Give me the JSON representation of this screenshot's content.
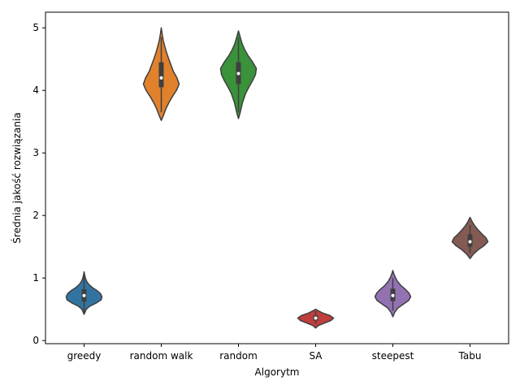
{
  "chart_data": {
    "type": "violin",
    "title": "",
    "xlabel": "Algorytm",
    "ylabel": "Średnia jakość rozwiązania",
    "ylim": [
      -0.05,
      5.25
    ],
    "yticks": [
      0,
      1,
      2,
      3,
      4,
      5
    ],
    "ytick_labels": [
      "0",
      "1",
      "2",
      "3",
      "4",
      "5"
    ],
    "grid": false,
    "categories": [
      "greedy",
      "random walk",
      "random",
      "SA",
      "steepest",
      "Tabu"
    ],
    "series": [
      {
        "category": "greedy",
        "color": "#3274a1",
        "whisker": [
          0.45,
          1.05
        ],
        "q1": 0.62,
        "median": 0.72,
        "q3": 0.82,
        "density": [
          [
            0.42,
            0.0
          ],
          [
            0.5,
            0.12
          ],
          [
            0.55,
            0.32
          ],
          [
            0.6,
            0.68
          ],
          [
            0.65,
            0.95
          ],
          [
            0.7,
            1.0
          ],
          [
            0.75,
            0.92
          ],
          [
            0.8,
            0.72
          ],
          [
            0.85,
            0.45
          ],
          [
            0.9,
            0.26
          ],
          [
            0.95,
            0.14
          ],
          [
            1.0,
            0.07
          ],
          [
            1.05,
            0.03
          ],
          [
            1.1,
            0.0
          ]
        ]
      },
      {
        "category": "random walk",
        "color": "#e1812c",
        "whisker": [
          3.65,
          4.85
        ],
        "q1": 4.05,
        "median": 4.2,
        "q3": 4.45,
        "density": [
          [
            3.52,
            0.0
          ],
          [
            3.6,
            0.12
          ],
          [
            3.7,
            0.25
          ],
          [
            3.8,
            0.42
          ],
          [
            3.9,
            0.62
          ],
          [
            4.0,
            0.85
          ],
          [
            4.1,
            1.0
          ],
          [
            4.2,
            0.88
          ],
          [
            4.3,
            0.68
          ],
          [
            4.4,
            0.55
          ],
          [
            4.5,
            0.42
          ],
          [
            4.6,
            0.3
          ],
          [
            4.7,
            0.2
          ],
          [
            4.8,
            0.11
          ],
          [
            4.9,
            0.05
          ],
          [
            5.0,
            0.0
          ]
        ]
      },
      {
        "category": "random",
        "color": "#3a923a",
        "whisker": [
          3.65,
          4.85
        ],
        "q1": 4.1,
        "median": 4.27,
        "q3": 4.45,
        "density": [
          [
            3.55,
            0.0
          ],
          [
            3.65,
            0.1
          ],
          [
            3.8,
            0.22
          ],
          [
            3.95,
            0.4
          ],
          [
            4.05,
            0.58
          ],
          [
            4.15,
            0.78
          ],
          [
            4.25,
            0.95
          ],
          [
            4.35,
            1.0
          ],
          [
            4.45,
            0.8
          ],
          [
            4.55,
            0.55
          ],
          [
            4.65,
            0.35
          ],
          [
            4.75,
            0.2
          ],
          [
            4.85,
            0.1
          ],
          [
            4.95,
            0.0
          ]
        ]
      },
      {
        "category": "SA",
        "color": "#c03d3e",
        "whisker": [
          0.27,
          0.47
        ],
        "q1": 0.32,
        "median": 0.36,
        "q3": 0.4,
        "density": [
          [
            0.2,
            0.0
          ],
          [
            0.24,
            0.15
          ],
          [
            0.28,
            0.5
          ],
          [
            0.32,
            0.85
          ],
          [
            0.36,
            1.0
          ],
          [
            0.4,
            0.8
          ],
          [
            0.44,
            0.4
          ],
          [
            0.48,
            0.12
          ],
          [
            0.5,
            0.0
          ]
        ]
      },
      {
        "category": "steepest",
        "color": "#9372b2",
        "whisker": [
          0.48,
          1.0
        ],
        "q1": 0.63,
        "median": 0.72,
        "q3": 0.83,
        "density": [
          [
            0.38,
            0.0
          ],
          [
            0.45,
            0.1
          ],
          [
            0.52,
            0.28
          ],
          [
            0.58,
            0.58
          ],
          [
            0.64,
            0.88
          ],
          [
            0.7,
            1.0
          ],
          [
            0.76,
            0.9
          ],
          [
            0.82,
            0.7
          ],
          [
            0.88,
            0.45
          ],
          [
            0.95,
            0.25
          ],
          [
            1.02,
            0.12
          ],
          [
            1.08,
            0.04
          ],
          [
            1.12,
            0.0
          ]
        ]
      },
      {
        "category": "Tabu",
        "color": "#845b53",
        "whisker": [
          1.4,
          1.85
        ],
        "q1": 1.5,
        "median": 1.58,
        "q3": 1.7,
        "density": [
          [
            1.31,
            0.0
          ],
          [
            1.38,
            0.18
          ],
          [
            1.45,
            0.45
          ],
          [
            1.52,
            0.8
          ],
          [
            1.58,
            1.0
          ],
          [
            1.64,
            0.9
          ],
          [
            1.7,
            0.68
          ],
          [
            1.76,
            0.48
          ],
          [
            1.82,
            0.3
          ],
          [
            1.88,
            0.16
          ],
          [
            1.94,
            0.05
          ],
          [
            1.97,
            0.0
          ]
        ]
      }
    ]
  }
}
